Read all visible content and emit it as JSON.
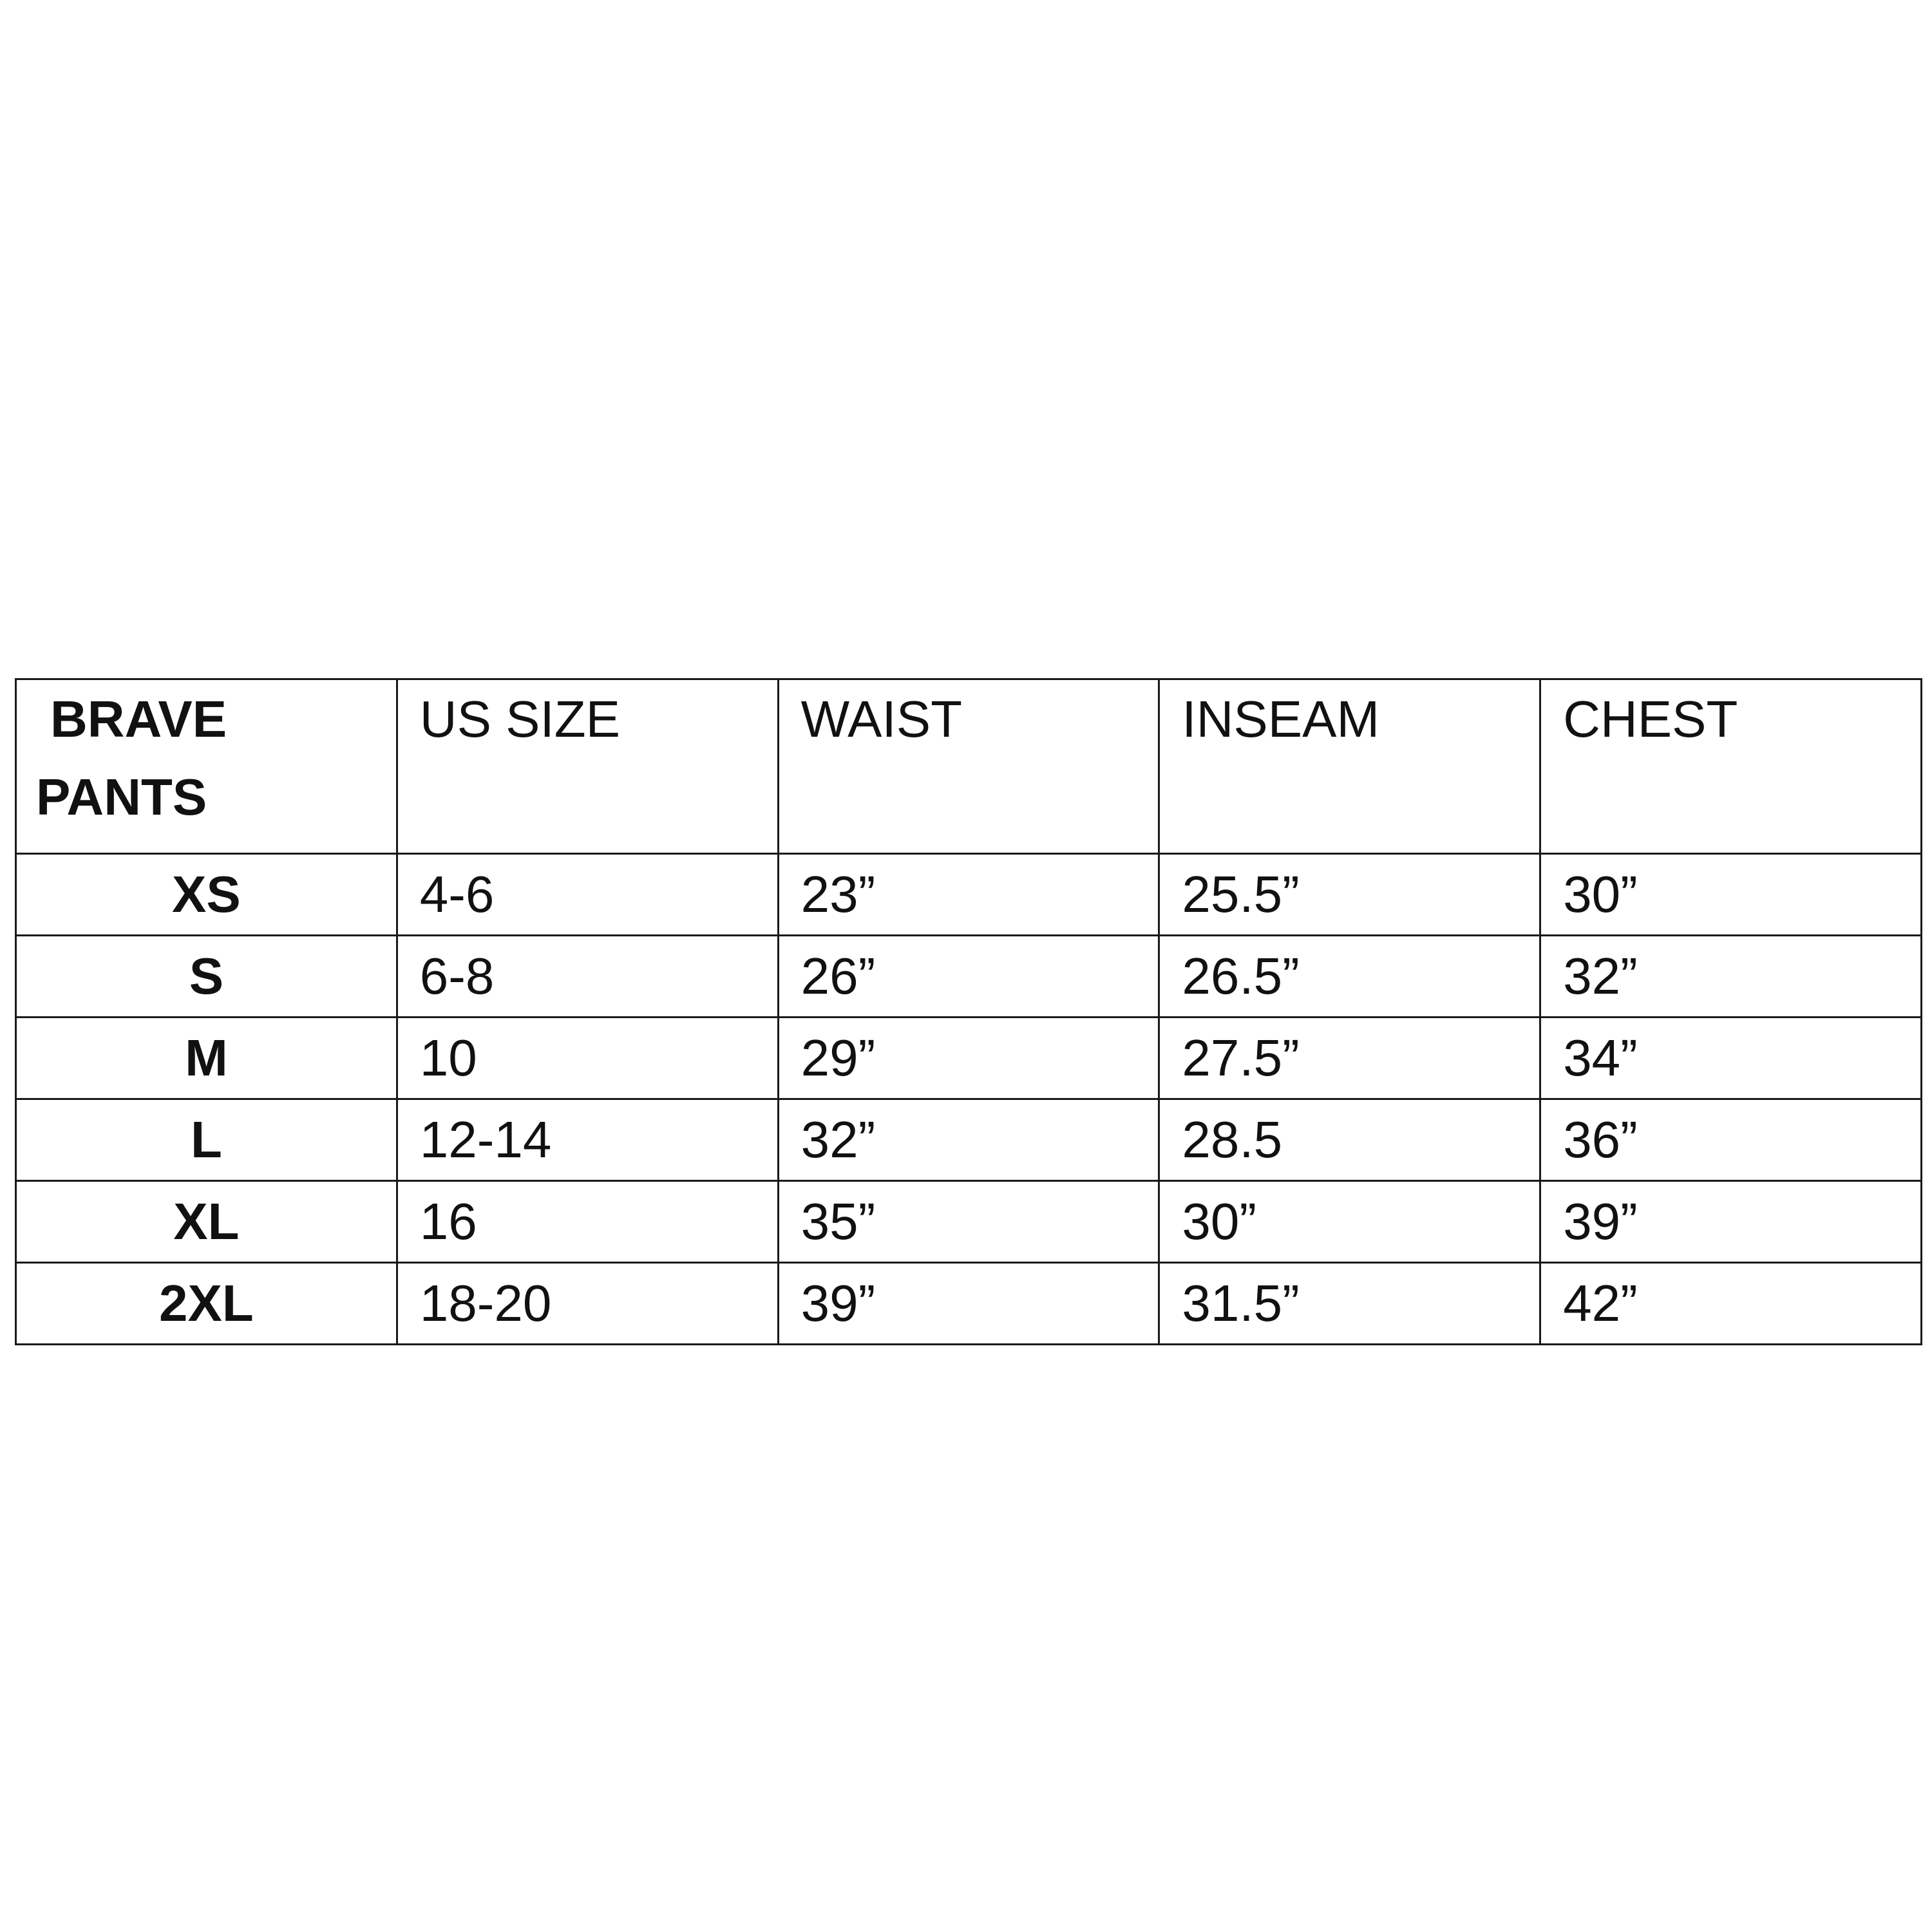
{
  "table": {
    "header": {
      "brand_line1": "BRAVE",
      "brand_line2": "PANTS",
      "columns": [
        "US SIZE",
        "WAIST",
        "INSEAM",
        "CHEST"
      ]
    },
    "rows": [
      {
        "size": "XS",
        "us_size": "4-6",
        "waist": "23”",
        "inseam": "25.5”",
        "chest": "30”"
      },
      {
        "size": "S",
        "us_size": "6-8",
        "waist": "26”",
        "inseam": "26.5”",
        "chest": "32”"
      },
      {
        "size": "M",
        "us_size": "10",
        "waist": "29”",
        "inseam": "27.5”",
        "chest": "34”"
      },
      {
        "size": "L",
        "us_size": "12-14",
        "waist": "32”",
        "inseam": "28.5",
        "chest": "36”"
      },
      {
        "size": "XL",
        "us_size": "16",
        "waist": "35”",
        "inseam": "30”",
        "chest": "39”"
      },
      {
        "size": "2XL",
        "us_size": "18-20",
        "waist": "39”",
        "inseam": "31.5”",
        "chest": "42”"
      }
    ]
  }
}
